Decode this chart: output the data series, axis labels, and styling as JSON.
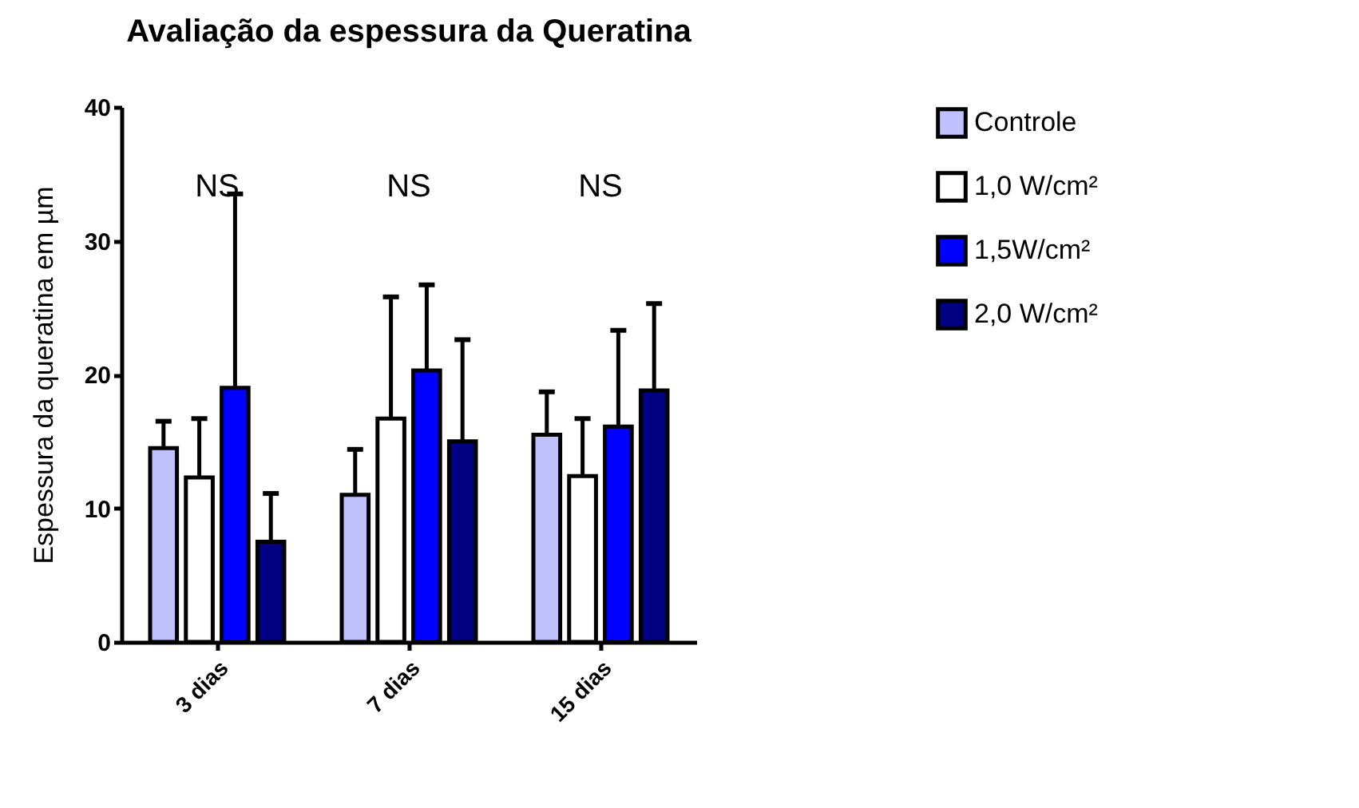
{
  "chart_data": {
    "type": "bar",
    "title": "Avaliação da espessura da Queratina",
    "ylabel": "Espessura da queratina em µm",
    "categories": [
      "3 dias",
      "7 dias",
      "15 dias"
    ],
    "series": [
      {
        "name": "Controle",
        "color": "#c0c0ff",
        "values": [
          14.5,
          11.0,
          15.5
        ],
        "errors": [
          [
            14.5,
            16.5
          ],
          [
            11.0,
            14.4
          ],
          [
            15.5,
            18.7
          ]
        ]
      },
      {
        "name": "1,0 W/cm²",
        "color": "#ffffff",
        "values": [
          12.3,
          16.7,
          12.4
        ],
        "errors": [
          [
            12.3,
            16.7
          ],
          [
            16.7,
            25.8
          ],
          [
            12.4,
            16.7
          ]
        ]
      },
      {
        "name": "1,5W/cm²",
        "color": "#0000ff",
        "values": [
          19.0,
          20.3,
          16.1
        ],
        "errors": [
          [
            19.0,
            33.5
          ],
          [
            20.3,
            26.7
          ],
          [
            16.1,
            23.3
          ]
        ]
      },
      {
        "name": "2,0 W/cm²",
        "color": "#000080",
        "values": [
          7.5,
          15.0,
          18.8
        ],
        "errors": [
          [
            7.5,
            11.1
          ],
          [
            15.0,
            22.6
          ],
          [
            18.8,
            25.3
          ]
        ]
      }
    ],
    "ylim": [
      0,
      40
    ],
    "yticks": [
      0,
      10,
      20,
      30,
      40
    ],
    "grid": false,
    "legend": "top right",
    "annotations": [
      "NS",
      "NS",
      "NS"
    ]
  }
}
